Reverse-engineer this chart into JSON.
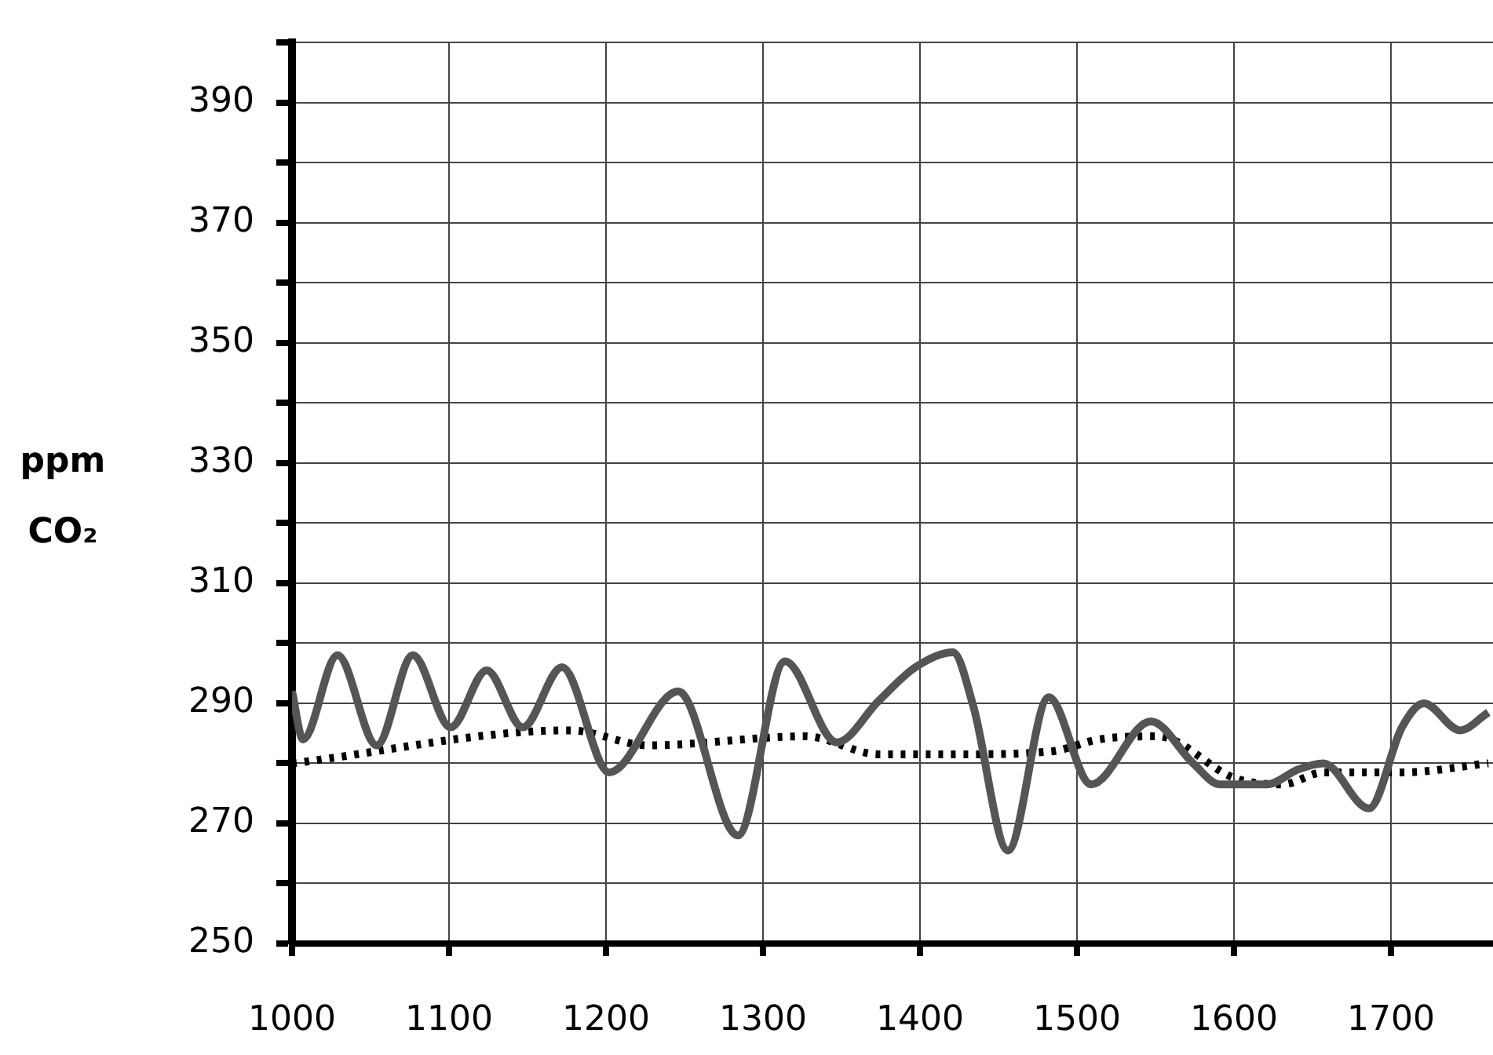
{
  "chart_data": {
    "type": "line",
    "ylabel": "ppm CO₂",
    "xlim": [
      1000,
      1765
    ],
    "xticks": [
      1000,
      1100,
      1200,
      1300,
      1400,
      1500,
      1600,
      1700
    ],
    "ylim": [
      250,
      400
    ],
    "yticks": [
      250,
      {
        "value": 260,
        "label": null
      },
      270,
      {
        "value": 280,
        "label": null
      },
      290,
      {
        "value": 300,
        "label": null
      },
      310,
      {
        "value": 320,
        "label": null
      },
      330,
      {
        "value": 340,
        "label": null
      },
      350,
      {
        "value": 360,
        "label": null
      },
      370,
      {
        "value": 380,
        "label": null
      },
      390,
      {
        "value": 400,
        "label": null
      }
    ],
    "grid": true,
    "legend": false,
    "marker": "none",
    "series": [
      {
        "color": "#555555",
        "line_style": "solid",
        "x": [
          1000,
          1007,
          1029,
          1054,
          1077,
          1101,
          1124,
          1147,
          1172,
          1202,
          1246,
          1284,
          1314,
          1347,
          1374,
          1397,
          1421,
          1434,
          1456,
          1482,
          1509,
          1547,
          1574,
          1591,
          1621,
          1641,
          1657,
          1686,
          1707,
          1721,
          1744,
          1762
        ],
        "values": [
          292,
          284,
          298,
          283,
          298,
          286,
          295.5,
          286,
          296,
          278.5,
          292,
          268,
          297,
          283.5,
          290.5,
          296,
          298.5,
          289.5,
          265.5,
          291,
          276.5,
          287,
          280,
          276.5,
          276.5,
          279,
          280,
          272.5,
          286,
          290,
          285.5,
          288.5
        ]
      },
      {
        "color": "#000000",
        "line_style": "dashed",
        "x": [
          1000,
          1177,
          1227,
          1327,
          1374,
          1424,
          1484,
          1514,
          1551,
          1601,
          1631,
          1657,
          1707,
          1762
        ],
        "values": [
          280,
          285.5,
          283,
          284.5,
          281.5,
          281.5,
          282,
          284,
          284.5,
          277.5,
          276.5,
          278.5,
          278.5,
          280
        ]
      }
    ]
  }
}
